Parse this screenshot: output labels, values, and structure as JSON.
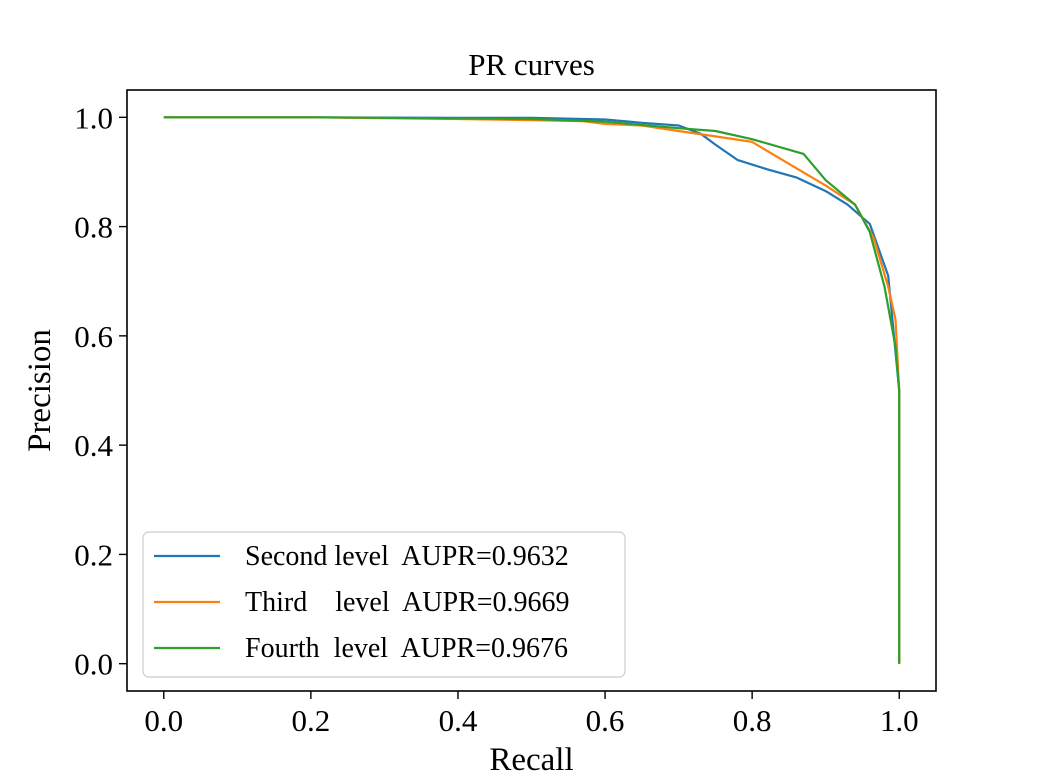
{
  "chart_data": {
    "type": "line",
    "title": "PR curves",
    "xlabel": "Recall",
    "ylabel": "Precision",
    "xlim": [
      -0.05,
      1.05
    ],
    "ylim": [
      -0.05,
      1.05
    ],
    "xticks": [
      0.0,
      0.2,
      0.4,
      0.6,
      0.8,
      1.0
    ],
    "xtick_labels": [
      "0.0",
      "0.2",
      "0.4",
      "0.6",
      "0.8",
      "1.0"
    ],
    "yticks": [
      0.0,
      0.2,
      0.4,
      0.6,
      0.8,
      1.0
    ],
    "ytick_labels": [
      "0.0",
      "0.2",
      "0.4",
      "0.6",
      "0.8",
      "1.0"
    ],
    "grid": false,
    "legend_position": "lower-left",
    "series": [
      {
        "name": "Second level  AUPR=0.9632",
        "color": "#1f77b4",
        "x": [
          0.0,
          0.2,
          0.4,
          0.5,
          0.6,
          0.65,
          0.7,
          0.73,
          0.75,
          0.78,
          0.82,
          0.86,
          0.9,
          0.93,
          0.96,
          0.985,
          1.0,
          1.0
        ],
        "y": [
          1.0,
          1.0,
          0.999,
          0.999,
          0.996,
          0.99,
          0.985,
          0.97,
          0.95,
          0.922,
          0.905,
          0.89,
          0.865,
          0.84,
          0.805,
          0.71,
          0.5,
          0.0
        ]
      },
      {
        "name": "Third    level  AUPR=0.9669",
        "color": "#ff7f0e",
        "x": [
          0.0,
          0.2,
          0.4,
          0.5,
          0.57,
          0.6,
          0.65,
          0.7,
          0.75,
          0.8,
          0.85,
          0.9,
          0.94,
          0.965,
          0.985,
          0.995,
          1.0,
          1.0
        ],
        "y": [
          1.0,
          1.0,
          0.997,
          0.995,
          0.993,
          0.988,
          0.985,
          0.975,
          0.965,
          0.955,
          0.915,
          0.875,
          0.84,
          0.78,
          0.69,
          0.63,
          0.5,
          0.0
        ]
      },
      {
        "name": "Fourth  level  AUPR=0.9676",
        "color": "#2ca02c",
        "x": [
          0.0,
          0.2,
          0.4,
          0.5,
          0.6,
          0.7,
          0.75,
          0.8,
          0.87,
          0.9,
          0.94,
          0.96,
          0.98,
          0.995,
          1.0,
          1.0
        ],
        "y": [
          1.0,
          1.0,
          0.998,
          0.997,
          0.992,
          0.98,
          0.975,
          0.96,
          0.933,
          0.885,
          0.84,
          0.79,
          0.69,
          0.58,
          0.5,
          0.0
        ]
      }
    ]
  }
}
